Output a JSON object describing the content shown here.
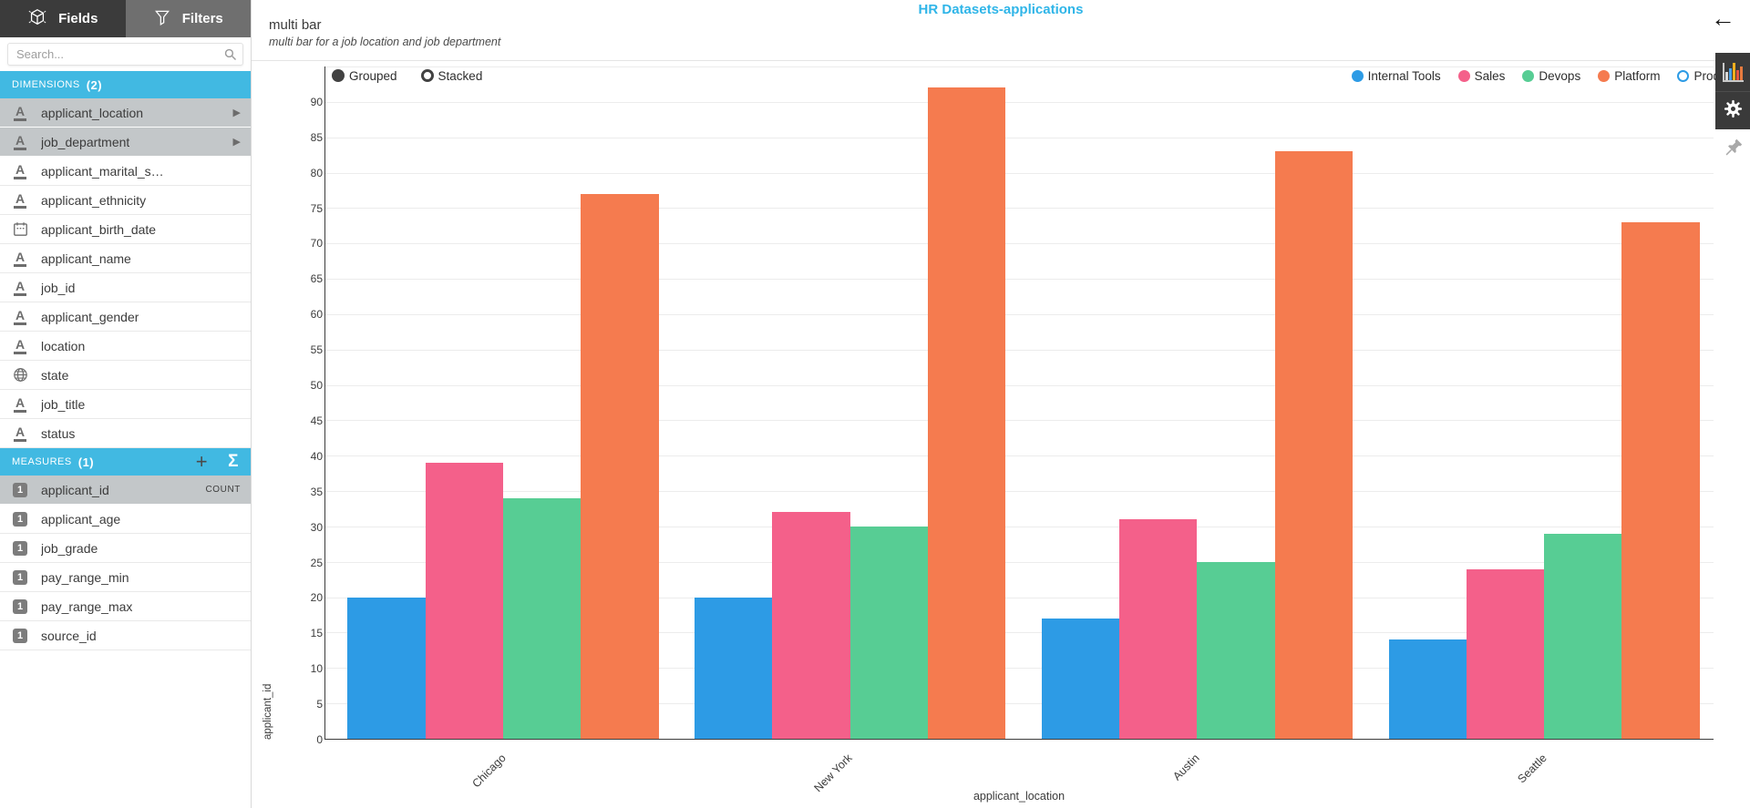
{
  "page": {
    "title": "HR Datasets-applications"
  },
  "icons": {
    "back": "←",
    "expand_arrow": "▶",
    "add": "+",
    "sigma": "Σ"
  },
  "colors": {
    "accent_band": "#41B9E2",
    "title_text": "#2FB5E8",
    "selected_row": "#C3C7C9"
  },
  "sidebar": {
    "tabs": [
      {
        "label": "Fields",
        "active": true
      },
      {
        "label": "Filters",
        "active": false
      }
    ],
    "search_placeholder": "Search...",
    "dimensions": {
      "label": "DIMENSIONS",
      "count_display": "(2)",
      "items": [
        {
          "label": "applicant_location",
          "icon": "text",
          "selected": true
        },
        {
          "label": "job_department",
          "icon": "text",
          "selected": true
        },
        {
          "label": "applicant_marital_s…",
          "icon": "text",
          "selected": false
        },
        {
          "label": "applicant_ethnicity",
          "icon": "text",
          "selected": false
        },
        {
          "label": "applicant_birth_date",
          "icon": "calendar",
          "selected": false
        },
        {
          "label": "applicant_name",
          "icon": "text",
          "selected": false
        },
        {
          "label": "job_id",
          "icon": "text",
          "selected": false
        },
        {
          "label": "applicant_gender",
          "icon": "text",
          "selected": false
        },
        {
          "label": "location",
          "icon": "text",
          "selected": false
        },
        {
          "label": "state",
          "icon": "globe",
          "selected": false
        },
        {
          "label": "job_title",
          "icon": "text",
          "selected": false
        },
        {
          "label": "status",
          "icon": "text",
          "selected": false
        }
      ]
    },
    "measures": {
      "label": "MEASURES",
      "count_display": "(1)",
      "items": [
        {
          "label": "applicant_id",
          "icon": "number",
          "selected": true,
          "badge": "COUNT"
        },
        {
          "label": "applicant_age",
          "icon": "number",
          "selected": false
        },
        {
          "label": "job_grade",
          "icon": "number",
          "selected": false
        },
        {
          "label": "pay_range_min",
          "icon": "number",
          "selected": false
        },
        {
          "label": "pay_range_max",
          "icon": "number",
          "selected": false
        },
        {
          "label": "source_id",
          "icon": "number",
          "selected": false
        }
      ]
    }
  },
  "header": {
    "chart_title": "multi bar",
    "subtitle": "multi bar for  a job location and job department"
  },
  "controls": {
    "modes": [
      {
        "label": "Grouped",
        "selected": true
      },
      {
        "label": "Stacked",
        "selected": false
      }
    ]
  },
  "legend": [
    {
      "label": "Internal Tools",
      "color": "#2D9BE5",
      "active": true
    },
    {
      "label": "Sales",
      "color": "#F4608A",
      "active": true
    },
    {
      "label": "Devops",
      "color": "#57CD94",
      "active": true
    },
    {
      "label": "Platform",
      "color": "#F57B4F",
      "active": true
    },
    {
      "label": "Product",
      "color": "#2D9BE5",
      "active": false
    }
  ],
  "chart_data": {
    "type": "bar",
    "mode": "grouped",
    "title": "multi bar",
    "categories": [
      "Chicago",
      "New York",
      "Austin",
      "Seattle"
    ],
    "series": [
      {
        "name": "Internal Tools",
        "color": "#2D9BE5",
        "values": [
          20,
          20,
          17,
          14
        ]
      },
      {
        "name": "Sales",
        "color": "#F4608A",
        "values": [
          39,
          32,
          31,
          24
        ]
      },
      {
        "name": "Devops",
        "color": "#57CD94",
        "values": [
          34,
          30,
          25,
          29
        ]
      },
      {
        "name": "Platform",
        "color": "#F57B4F",
        "values": [
          77,
          92,
          83,
          73
        ]
      }
    ],
    "xlabel": "applicant_location",
    "ylabel": "applicant_id",
    "ylim": [
      0,
      95
    ],
    "ytick_step": 5,
    "ytick_max_label": 90,
    "grid": true,
    "legend_position": "top-right"
  }
}
